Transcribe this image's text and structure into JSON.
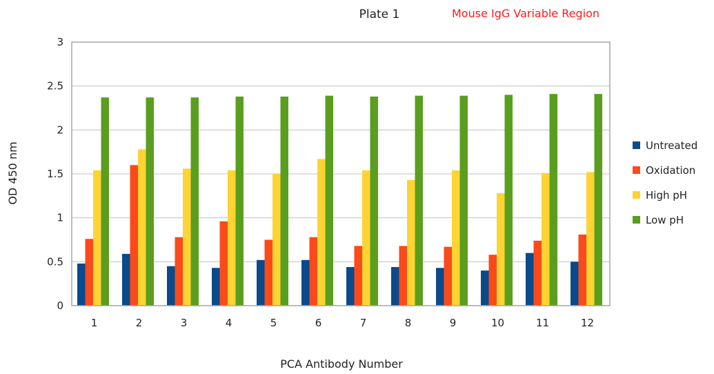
{
  "chart_data": {
    "type": "bar",
    "title": "Plate 1",
    "subtitle": "Mouse IgG Variable Region",
    "xlabel": "PCA Antibody Number",
    "ylabel": "OD 450 nm",
    "ylim": [
      0,
      3
    ],
    "yticks": [
      "0",
      "0.5",
      "1",
      "1.5",
      "2",
      "2.5",
      "3"
    ],
    "grid": true,
    "legend_position": "right",
    "categories": [
      "1",
      "2",
      "3",
      "4",
      "5",
      "6",
      "7",
      "8",
      "9",
      "10",
      "11",
      "12"
    ],
    "series": [
      {
        "name": "Untreated",
        "color": "#0b4a8b",
        "values": [
          0.48,
          0.59,
          0.45,
          0.43,
          0.52,
          0.52,
          0.44,
          0.44,
          0.43,
          0.4,
          0.6,
          0.5
        ]
      },
      {
        "name": "Oxidation",
        "color": "#fb4a1a",
        "values": [
          0.76,
          1.6,
          0.78,
          0.96,
          0.75,
          0.78,
          0.68,
          0.68,
          0.67,
          0.58,
          0.74,
          0.81
        ]
      },
      {
        "name": "High pH",
        "color": "#fdd431",
        "values": [
          1.54,
          1.78,
          1.56,
          1.54,
          1.5,
          1.67,
          1.54,
          1.43,
          1.54,
          1.28,
          1.51,
          1.52
        ]
      },
      {
        "name": "Low pH",
        "color": "#5a9e1f",
        "values": [
          2.37,
          2.37,
          2.37,
          2.38,
          2.38,
          2.39,
          2.38,
          2.39,
          2.39,
          2.4,
          2.41,
          2.41
        ]
      }
    ],
    "colors": {
      "subtitle": "#ff1a1a",
      "grid": "#c0c0c0",
      "frame": "#a6a6a6"
    }
  }
}
